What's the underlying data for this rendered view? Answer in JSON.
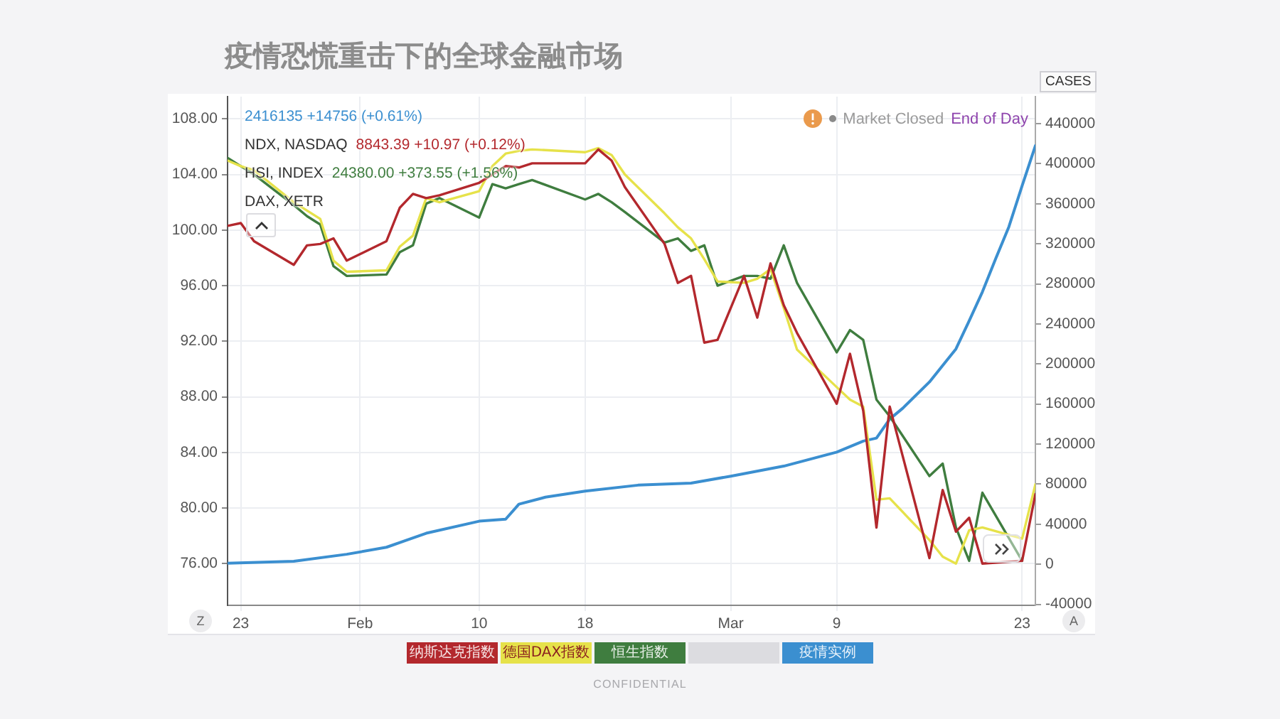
{
  "chart_data": {
    "type": "line",
    "title": "疫情恐慌重击下的全球金融市场",
    "x": [
      "--01-22",
      "--01-23",
      "--01-24",
      "--01-27",
      "--01-28",
      "--01-29",
      "--01-30",
      "--01-31",
      "--02-03",
      "--02-04",
      "--02-05",
      "--02-06",
      "--02-07",
      "--02-10",
      "--02-11",
      "--02-12",
      "--02-13",
      "--02-14",
      "--02-18",
      "--02-19",
      "--02-20",
      "--02-21",
      "--02-24",
      "--02-25",
      "--02-26",
      "--02-27",
      "--02-28",
      "--03-02",
      "--03-03",
      "--03-04",
      "--03-05",
      "--03-06",
      "--03-09",
      "--03-10",
      "--03-11",
      "--03-12",
      "--03-13",
      "--03-16",
      "--03-17",
      "--03-18",
      "--03-19",
      "--03-20",
      "--03-23",
      "--03-24"
    ],
    "xlim": [
      "--01-22",
      "--03-24"
    ],
    "xticks": [
      {
        "value": "--01-23",
        "label": "23"
      },
      {
        "value": "--02-01",
        "label": "Feb"
      },
      {
        "value": "--02-10",
        "label": "10"
      },
      {
        "value": "--02-18",
        "label": "18"
      },
      {
        "value": "--03-01",
        "label": "Mar"
      },
      {
        "value": "--03-09",
        "label": "9"
      },
      {
        "value": "--03-23",
        "label": "23"
      }
    ],
    "ylim": [
      73,
      109.6
    ],
    "yticks": [
      {
        "value": 76,
        "label": "76.00"
      },
      {
        "value": 80,
        "label": "80.00"
      },
      {
        "value": 84,
        "label": "84.00"
      },
      {
        "value": 88,
        "label": "88.00"
      },
      {
        "value": 92,
        "label": "92.00"
      },
      {
        "value": 96,
        "label": "96.00"
      },
      {
        "value": 100,
        "label": "100.00"
      },
      {
        "value": 104,
        "label": "104.00"
      },
      {
        "value": 108,
        "label": "108.00"
      }
    ],
    "y2lim": [
      -41000,
      467000
    ],
    "y2ticks": [
      -40000,
      0,
      40000,
      80000,
      120000,
      160000,
      200000,
      240000,
      280000,
      320000,
      360000,
      400000,
      440000
    ],
    "y2label": "CASES",
    "series": [
      {
        "name": "纳斯达克指数",
        "color": "#b3282d",
        "values": [
          100.3,
          100.5,
          99.2,
          97.5,
          98.9,
          99.0,
          99.4,
          97.8,
          99.2,
          101.6,
          102.6,
          102.3,
          102.5,
          103.4,
          104.0,
          104.6,
          104.5,
          104.8,
          104.8,
          105.8,
          105.0,
          103.1,
          99.0,
          96.2,
          96.7,
          91.9,
          92.1,
          96.7,
          93.7,
          97.6,
          94.6,
          92.6,
          87.5,
          91.1,
          87.0,
          78.6,
          87.3,
          76.4,
          81.3,
          78.3,
          79.3,
          76.0,
          76.2,
          81.0
        ]
      },
      {
        "name": "德国DAX指数",
        "color": "#e6e24a",
        "values": [
          105.0,
          104.6,
          104.3,
          102.0,
          101.4,
          100.8,
          97.8,
          97.0,
          97.1,
          98.8,
          99.6,
          102.3,
          102.0,
          102.8,
          104.6,
          105.5,
          105.7,
          105.8,
          105.6,
          105.9,
          105.4,
          104.0,
          101.2,
          100.2,
          99.4,
          97.9,
          96.3,
          96.2,
          96.5,
          97.2,
          94.4,
          91.4,
          88.7,
          87.8,
          87.3,
          80.6,
          80.7,
          77.7,
          76.5,
          76.0,
          78.4,
          78.6,
          77.8,
          81.7
        ]
      },
      {
        "name": "恒生指数",
        "color": "#3f7d3f",
        "values": [
          105.2,
          104.6,
          104.0,
          101.8,
          101.0,
          100.4,
          97.4,
          96.7,
          96.8,
          98.4,
          98.9,
          101.9,
          102.3,
          100.9,
          103.3,
          103.0,
          103.3,
          103.6,
          102.2,
          102.6,
          102.0,
          101.3,
          99.1,
          99.4,
          98.5,
          98.9,
          96.0,
          96.7,
          96.7,
          96.5,
          98.9,
          96.2,
          91.2,
          92.8,
          92.1,
          87.8,
          86.6,
          82.3,
          83.2,
          78.6,
          76.2,
          81.1,
          76.2,
          null
        ]
      },
      {
        "name": "疫情实例",
        "color": "#3b8fd0",
        "axis": "y2",
        "x": [
          "--01-22",
          "--01-27",
          "--01-31",
          "--02-03",
          "--02-06",
          "--02-10",
          "--02-12",
          "--02-13",
          "--02-15",
          "--02-18",
          "--02-22",
          "--02-26",
          "--03-01",
          "--03-05",
          "--03-09",
          "--03-11",
          "--03-12",
          "--03-13",
          "--03-14",
          "--03-16",
          "--03-18",
          "--03-19",
          "--03-20",
          "--03-21",
          "--03-22",
          "--03-23",
          "--03-24"
        ],
        "values": [
          1000,
          3000,
          10000,
          17000,
          31000,
          43000,
          45000,
          60000,
          67000,
          73000,
          79000,
          81000,
          88000,
          98000,
          112000,
          123000,
          126000,
          145000,
          156000,
          182000,
          215000,
          243000,
          272000,
          305000,
          337000,
          378000,
          418000
        ]
      }
    ],
    "grid": true,
    "legend": "bottom",
    "annotations": [
      "2416135 +14756 (+0.61%)",
      "NDX, NASDAQ 8843.39 +10.97 (+0.12%)",
      "HSI, INDEX 24380.00 +373.55 (+1.56%)",
      "DAX, XETR",
      "Market Closed",
      "End of Day",
      "Z",
      "A",
      "CONFIDENTIAL"
    ]
  }
}
